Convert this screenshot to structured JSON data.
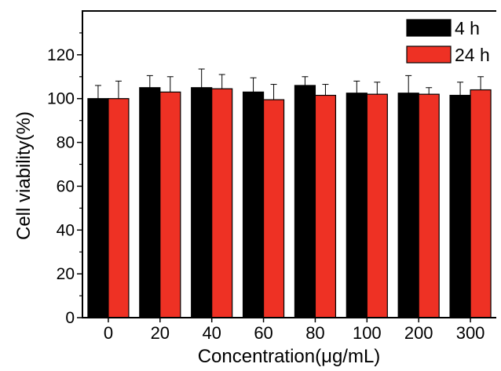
{
  "chart_data": {
    "type": "bar",
    "title": "",
    "xlabel": "Concentration(μg/mL)",
    "ylabel": "Cell viability(%)",
    "categories": [
      "0",
      "20",
      "40",
      "60",
      "80",
      "100",
      "200",
      "300"
    ],
    "ylim": [
      0,
      140
    ],
    "yticks": [
      0,
      20,
      40,
      60,
      80,
      100,
      120
    ],
    "grid": false,
    "legend_position": "top-right",
    "series": [
      {
        "name": "4 h",
        "color": "#000000",
        "values": [
          100,
          105,
          105,
          103,
          106,
          102.5,
          102.5,
          101.5
        ],
        "errors": [
          6,
          5.5,
          8.5,
          6.5,
          4,
          5.5,
          8,
          6
        ]
      },
      {
        "name": "24 h",
        "color": "#ee3124",
        "values": [
          100,
          103,
          104.5,
          99.5,
          101.5,
          102,
          102,
          104
        ],
        "errors": [
          8,
          7,
          6.5,
          7,
          5,
          5.5,
          3,
          6
        ]
      }
    ]
  }
}
